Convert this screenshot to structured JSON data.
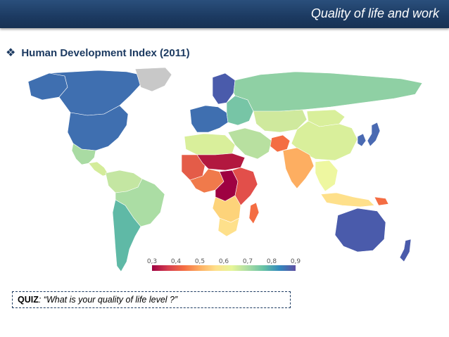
{
  "header": {
    "title": "Quality of life and work"
  },
  "section": {
    "bullet_icon": "diamond-bullet-icon",
    "heading": "Human Development Index (2011)"
  },
  "map": {
    "legend": {
      "ticks": [
        "0,3",
        "0,4",
        "0,5",
        "0,6",
        "0,7",
        "0,8",
        "0,9"
      ],
      "colors": [
        "#9e0142",
        "#d53e4f",
        "#f46d43",
        "#fdae61",
        "#fee08b",
        "#e6f598",
        "#abdda4",
        "#66c2a5",
        "#3288bd",
        "#5e4fa2"
      ]
    },
    "no_data_color": "#c8c8c8",
    "regions": [
      {
        "name": "Canada",
        "color": "#3f6fb0"
      },
      {
        "name": "Alaska",
        "color": "#3f6fb0"
      },
      {
        "name": "United States",
        "color": "#3f6fb0"
      },
      {
        "name": "Greenland",
        "color": "#c8c8c8"
      },
      {
        "name": "Mexico",
        "color": "#a9dba3"
      },
      {
        "name": "Central America",
        "color": "#d4ec9a"
      },
      {
        "name": "South America North",
        "color": "#c4e6a2"
      },
      {
        "name": "Brazil",
        "color": "#abdda4"
      },
      {
        "name": "Argentina Chile",
        "color": "#5fb9a6"
      },
      {
        "name": "Western Europe",
        "color": "#3f6fb0"
      },
      {
        "name": "Scandinavia",
        "color": "#4a5bab"
      },
      {
        "name": "Eastern Europe",
        "color": "#77c5a6"
      },
      {
        "name": "Russia",
        "color": "#8fd0a4"
      },
      {
        "name": "Central Asia",
        "color": "#cfe99d"
      },
      {
        "name": "Middle East",
        "color": "#b8e0a0"
      },
      {
        "name": "Afghanistan",
        "color": "#f46d43"
      },
      {
        "name": "India",
        "color": "#fdae61"
      },
      {
        "name": "China",
        "color": "#d9ef9b"
      },
      {
        "name": "Mongolia",
        "color": "#d9ef9b"
      },
      {
        "name": "Japan",
        "color": "#4a6ab2"
      },
      {
        "name": "Korea",
        "color": "#4a6ab2"
      },
      {
        "name": "Southeast Asia",
        "color": "#eef7a0"
      },
      {
        "name": "Indonesia",
        "color": "#fee08b"
      },
      {
        "name": "Papua New Guinea",
        "color": "#f46d43"
      },
      {
        "name": "Australia",
        "color": "#4a5bab"
      },
      {
        "name": "New Zealand",
        "color": "#4a5bab"
      },
      {
        "name": "North Africa",
        "color": "#d9ef9b"
      },
      {
        "name": "Sahel",
        "color": "#b2183f"
      },
      {
        "name": "West Africa",
        "color": "#e45c48"
      },
      {
        "name": "Central Africa",
        "color": "#f07a4b"
      },
      {
        "name": "DR Congo",
        "color": "#9e0142"
      },
      {
        "name": "East Africa",
        "color": "#e24f4a"
      },
      {
        "name": "Southern Africa",
        "color": "#fdd37a"
      },
      {
        "name": "South Africa",
        "color": "#fee08b"
      },
      {
        "name": "Madagascar",
        "color": "#f46d43"
      }
    ]
  },
  "quiz": {
    "label": "QUIZ",
    "text": ": “What is your quality of life level ?”"
  }
}
